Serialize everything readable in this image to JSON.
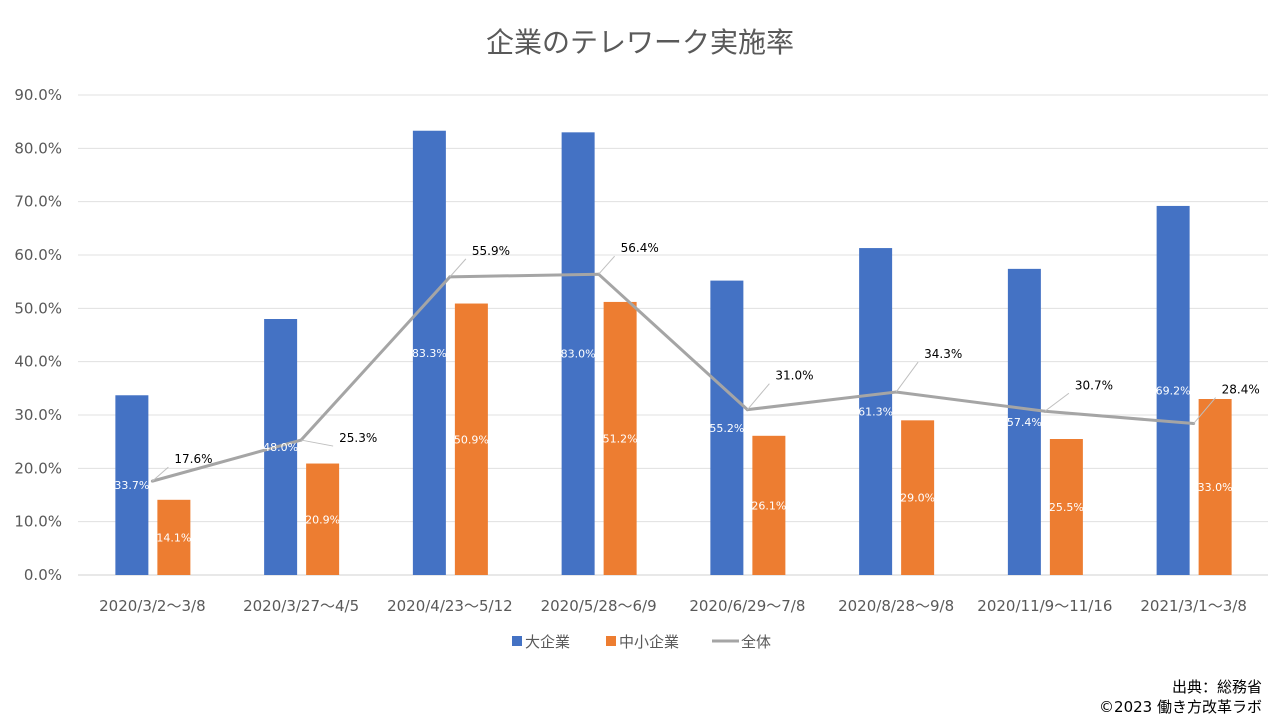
{
  "chart_data": {
    "type": "bar",
    "title": "企業のテレワーク実施率",
    "categories": [
      "2020/3/2〜3/8",
      "2020/3/27〜4/5",
      "2020/4/23〜5/12",
      "2020/5/28〜6/9",
      "2020/6/29〜7/8",
      "2020/8/28〜9/8",
      "2020/11/9〜11/16",
      "2021/3/1〜3/8"
    ],
    "ylim": [
      0,
      90
    ],
    "yticks": [
      "0.0%",
      "10.0%",
      "20.0%",
      "30.0%",
      "40.0%",
      "50.0%",
      "60.0%",
      "70.0%",
      "80.0%",
      "90.0%"
    ],
    "grid": true,
    "legend_position": "bottom",
    "series": [
      {
        "name": "大企業",
        "type": "bar",
        "color": "#4472C4",
        "values": [
          33.7,
          48.0,
          83.3,
          83.0,
          55.2,
          61.3,
          57.4,
          69.2
        ],
        "labels": [
          "33.7%",
          "48.0%",
          "83.3%",
          "83.0%",
          "55.2%",
          "61.3%",
          "57.4%",
          "69.2%"
        ]
      },
      {
        "name": "中小企業",
        "type": "bar",
        "color": "#ED7D31",
        "values": [
          14.1,
          20.9,
          50.9,
          51.2,
          26.1,
          29.0,
          25.5,
          33.0
        ],
        "labels": [
          "14.1%",
          "20.9%",
          "50.9%",
          "51.2%",
          "26.1%",
          "29.0%",
          "25.5%",
          "33.0%"
        ]
      },
      {
        "name": "全体",
        "type": "line",
        "color": "#A5A5A5",
        "values": [
          17.6,
          25.3,
          55.9,
          56.4,
          31.0,
          34.3,
          30.7,
          28.4
        ],
        "labels": [
          "17.6%",
          "25.3%",
          "55.9%",
          "56.4%",
          "31.0%",
          "34.3%",
          "30.7%",
          "28.4%"
        ]
      }
    ]
  },
  "source": {
    "line1": "出典：総務省",
    "line2": "©2023 働き方改革ラボ"
  }
}
